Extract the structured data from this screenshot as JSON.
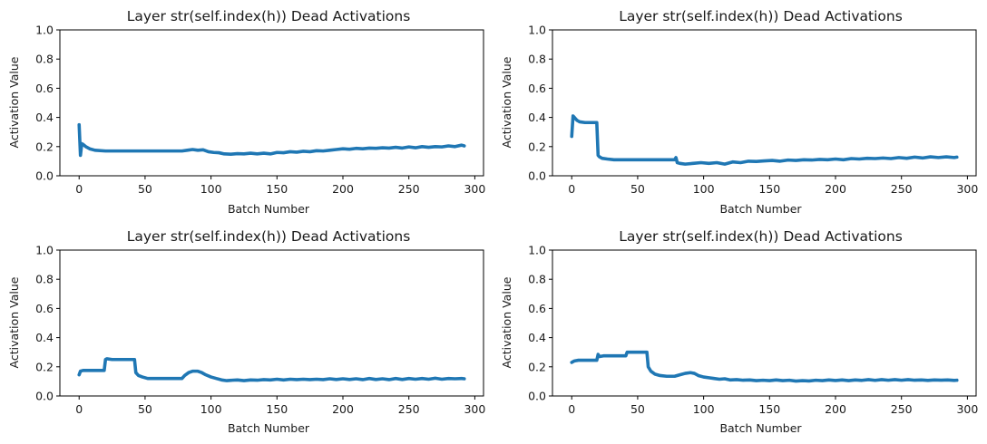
{
  "chart_data": [
    {
      "type": "line",
      "title": "Layer str(self.index(h)) Dead Activations",
      "xlabel": "Batch Number",
      "ylabel": "Activation Value",
      "xlim": [
        -14.6,
        306.6
      ],
      "ylim": [
        0,
        1
      ],
      "xticks": [
        "0",
        "50",
        "100",
        "150",
        "200",
        "250",
        "300"
      ],
      "yticks": [
        "0.0",
        "0.2",
        "0.4",
        "0.6",
        "0.8",
        "1.0"
      ],
      "color": "#1f77b4",
      "grid": false,
      "points": [
        [
          0,
          0.35
        ],
        [
          1,
          0.14
        ],
        [
          2,
          0.22
        ],
        [
          3,
          0.215
        ],
        [
          5,
          0.2
        ],
        [
          8,
          0.185
        ],
        [
          12,
          0.175
        ],
        [
          20,
          0.17
        ],
        [
          40,
          0.17
        ],
        [
          60,
          0.17
        ],
        [
          78,
          0.17
        ],
        [
          82,
          0.175
        ],
        [
          86,
          0.18
        ],
        [
          90,
          0.175
        ],
        [
          94,
          0.178
        ],
        [
          98,
          0.165
        ],
        [
          102,
          0.16
        ],
        [
          106,
          0.158
        ],
        [
          110,
          0.15
        ],
        [
          115,
          0.148
        ],
        [
          120,
          0.152
        ],
        [
          125,
          0.15
        ],
        [
          130,
          0.155
        ],
        [
          135,
          0.15
        ],
        [
          140,
          0.155
        ],
        [
          145,
          0.15
        ],
        [
          150,
          0.16
        ],
        [
          155,
          0.158
        ],
        [
          160,
          0.165
        ],
        [
          165,
          0.162
        ],
        [
          170,
          0.168
        ],
        [
          175,
          0.165
        ],
        [
          180,
          0.172
        ],
        [
          185,
          0.17
        ],
        [
          190,
          0.175
        ],
        [
          195,
          0.18
        ],
        [
          200,
          0.185
        ],
        [
          205,
          0.182
        ],
        [
          210,
          0.188
        ],
        [
          215,
          0.185
        ],
        [
          220,
          0.19
        ],
        [
          225,
          0.188
        ],
        [
          230,
          0.192
        ],
        [
          235,
          0.19
        ],
        [
          240,
          0.195
        ],
        [
          245,
          0.19
        ],
        [
          250,
          0.198
        ],
        [
          255,
          0.192
        ],
        [
          260,
          0.2
        ],
        [
          265,
          0.195
        ],
        [
          270,
          0.2
        ],
        [
          275,
          0.198
        ],
        [
          280,
          0.205
        ],
        [
          285,
          0.2
        ],
        [
          290,
          0.21
        ],
        [
          292,
          0.205
        ]
      ]
    },
    {
      "type": "line",
      "title": "Layer str(self.index(h)) Dead Activations",
      "xlabel": "Batch Number",
      "ylabel": "Activation Value",
      "xlim": [
        -14.6,
        306.6
      ],
      "ylim": [
        0,
        1
      ],
      "xticks": [
        "0",
        "50",
        "100",
        "150",
        "200",
        "250",
        "300"
      ],
      "yticks": [
        "0.0",
        "0.2",
        "0.4",
        "0.6",
        "0.8",
        "1.0"
      ],
      "color": "#1f77b4",
      "grid": false,
      "points": [
        [
          0,
          0.27
        ],
        [
          1,
          0.41
        ],
        [
          2,
          0.4
        ],
        [
          4,
          0.38
        ],
        [
          6,
          0.37
        ],
        [
          10,
          0.365
        ],
        [
          15,
          0.365
        ],
        [
          19,
          0.365
        ],
        [
          20,
          0.14
        ],
        [
          21,
          0.13
        ],
        [
          23,
          0.12
        ],
        [
          27,
          0.115
        ],
        [
          32,
          0.11
        ],
        [
          40,
          0.11
        ],
        [
          50,
          0.11
        ],
        [
          60,
          0.11
        ],
        [
          70,
          0.11
        ],
        [
          78,
          0.11
        ],
        [
          79,
          0.125
        ],
        [
          80,
          0.09
        ],
        [
          82,
          0.085
        ],
        [
          86,
          0.08
        ],
        [
          92,
          0.085
        ],
        [
          98,
          0.09
        ],
        [
          104,
          0.085
        ],
        [
          110,
          0.09
        ],
        [
          116,
          0.08
        ],
        [
          122,
          0.095
        ],
        [
          128,
          0.09
        ],
        [
          134,
          0.1
        ],
        [
          140,
          0.098
        ],
        [
          146,
          0.102
        ],
        [
          152,
          0.105
        ],
        [
          158,
          0.1
        ],
        [
          164,
          0.108
        ],
        [
          170,
          0.105
        ],
        [
          176,
          0.11
        ],
        [
          182,
          0.108
        ],
        [
          188,
          0.112
        ],
        [
          194,
          0.11
        ],
        [
          200,
          0.115
        ],
        [
          206,
          0.11
        ],
        [
          212,
          0.118
        ],
        [
          218,
          0.115
        ],
        [
          224,
          0.12
        ],
        [
          230,
          0.118
        ],
        [
          236,
          0.122
        ],
        [
          242,
          0.118
        ],
        [
          248,
          0.125
        ],
        [
          254,
          0.12
        ],
        [
          260,
          0.128
        ],
        [
          266,
          0.122
        ],
        [
          272,
          0.13
        ],
        [
          278,
          0.125
        ],
        [
          284,
          0.13
        ],
        [
          290,
          0.125
        ],
        [
          292,
          0.128
        ]
      ]
    },
    {
      "type": "line",
      "title": "Layer str(self.index(h)) Dead Activations",
      "xlabel": "Batch Number",
      "ylabel": "Activation Value",
      "xlim": [
        -14.6,
        306.6
      ],
      "ylim": [
        0,
        1
      ],
      "xticks": [
        "0",
        "50",
        "100",
        "150",
        "200",
        "250",
        "300"
      ],
      "yticks": [
        "0.0",
        "0.2",
        "0.4",
        "0.6",
        "0.8",
        "1.0"
      ],
      "color": "#1f77b4",
      "grid": false,
      "points": [
        [
          0,
          0.145
        ],
        [
          1,
          0.17
        ],
        [
          3,
          0.175
        ],
        [
          10,
          0.175
        ],
        [
          19,
          0.175
        ],
        [
          20,
          0.25
        ],
        [
          21,
          0.255
        ],
        [
          25,
          0.25
        ],
        [
          35,
          0.25
        ],
        [
          42,
          0.25
        ],
        [
          43,
          0.16
        ],
        [
          45,
          0.14
        ],
        [
          48,
          0.13
        ],
        [
          52,
          0.12
        ],
        [
          60,
          0.12
        ],
        [
          70,
          0.12
        ],
        [
          78,
          0.12
        ],
        [
          80,
          0.14
        ],
        [
          83,
          0.16
        ],
        [
          86,
          0.17
        ],
        [
          90,
          0.17
        ],
        [
          93,
          0.16
        ],
        [
          96,
          0.145
        ],
        [
          100,
          0.13
        ],
        [
          104,
          0.12
        ],
        [
          108,
          0.11
        ],
        [
          112,
          0.105
        ],
        [
          116,
          0.108
        ],
        [
          120,
          0.11
        ],
        [
          125,
          0.105
        ],
        [
          130,
          0.11
        ],
        [
          135,
          0.108
        ],
        [
          140,
          0.112
        ],
        [
          145,
          0.11
        ],
        [
          150,
          0.115
        ],
        [
          155,
          0.11
        ],
        [
          160,
          0.115
        ],
        [
          165,
          0.112
        ],
        [
          170,
          0.115
        ],
        [
          175,
          0.112
        ],
        [
          180,
          0.115
        ],
        [
          185,
          0.112
        ],
        [
          190,
          0.118
        ],
        [
          195,
          0.113
        ],
        [
          200,
          0.118
        ],
        [
          205,
          0.113
        ],
        [
          210,
          0.118
        ],
        [
          215,
          0.112
        ],
        [
          220,
          0.12
        ],
        [
          225,
          0.113
        ],
        [
          230,
          0.118
        ],
        [
          235,
          0.112
        ],
        [
          240,
          0.12
        ],
        [
          245,
          0.113
        ],
        [
          250,
          0.12
        ],
        [
          255,
          0.115
        ],
        [
          260,
          0.12
        ],
        [
          265,
          0.115
        ],
        [
          270,
          0.122
        ],
        [
          275,
          0.115
        ],
        [
          280,
          0.12
        ],
        [
          285,
          0.118
        ],
        [
          290,
          0.12
        ],
        [
          292,
          0.118
        ]
      ]
    },
    {
      "type": "line",
      "title": "Layer str(self.index(h)) Dead Activations",
      "xlabel": "Batch Number",
      "ylabel": "Activation Value",
      "xlim": [
        -14.6,
        306.6
      ],
      "ylim": [
        0,
        1
      ],
      "xticks": [
        "0",
        "50",
        "100",
        "150",
        "200",
        "250",
        "300"
      ],
      "yticks": [
        "0.0",
        "0.2",
        "0.4",
        "0.6",
        "0.8",
        "1.0"
      ],
      "color": "#1f77b4",
      "grid": false,
      "points": [
        [
          0,
          0.23
        ],
        [
          2,
          0.24
        ],
        [
          5,
          0.245
        ],
        [
          10,
          0.245
        ],
        [
          19,
          0.245
        ],
        [
          20,
          0.285
        ],
        [
          21,
          0.27
        ],
        [
          24,
          0.275
        ],
        [
          30,
          0.275
        ],
        [
          41,
          0.275
        ],
        [
          42,
          0.3
        ],
        [
          44,
          0.3
        ],
        [
          50,
          0.3
        ],
        [
          57,
          0.3
        ],
        [
          58,
          0.2
        ],
        [
          60,
          0.17
        ],
        [
          63,
          0.15
        ],
        [
          67,
          0.14
        ],
        [
          72,
          0.135
        ],
        [
          78,
          0.135
        ],
        [
          82,
          0.145
        ],
        [
          86,
          0.155
        ],
        [
          90,
          0.16
        ],
        [
          93,
          0.155
        ],
        [
          96,
          0.14
        ],
        [
          100,
          0.13
        ],
        [
          104,
          0.125
        ],
        [
          108,
          0.12
        ],
        [
          112,
          0.115
        ],
        [
          116,
          0.118
        ],
        [
          120,
          0.11
        ],
        [
          125,
          0.112
        ],
        [
          130,
          0.108
        ],
        [
          135,
          0.11
        ],
        [
          140,
          0.105
        ],
        [
          145,
          0.108
        ],
        [
          150,
          0.105
        ],
        [
          155,
          0.11
        ],
        [
          160,
          0.105
        ],
        [
          165,
          0.108
        ],
        [
          170,
          0.102
        ],
        [
          175,
          0.105
        ],
        [
          180,
          0.103
        ],
        [
          185,
          0.108
        ],
        [
          190,
          0.105
        ],
        [
          195,
          0.11
        ],
        [
          200,
          0.106
        ],
        [
          205,
          0.11
        ],
        [
          210,
          0.105
        ],
        [
          215,
          0.11
        ],
        [
          220,
          0.107
        ],
        [
          225,
          0.112
        ],
        [
          230,
          0.107
        ],
        [
          235,
          0.112
        ],
        [
          240,
          0.108
        ],
        [
          245,
          0.112
        ],
        [
          250,
          0.108
        ],
        [
          255,
          0.112
        ],
        [
          260,
          0.108
        ],
        [
          265,
          0.11
        ],
        [
          270,
          0.107
        ],
        [
          275,
          0.11
        ],
        [
          280,
          0.108
        ],
        [
          285,
          0.11
        ],
        [
          290,
          0.107
        ],
        [
          292,
          0.108
        ]
      ]
    }
  ]
}
